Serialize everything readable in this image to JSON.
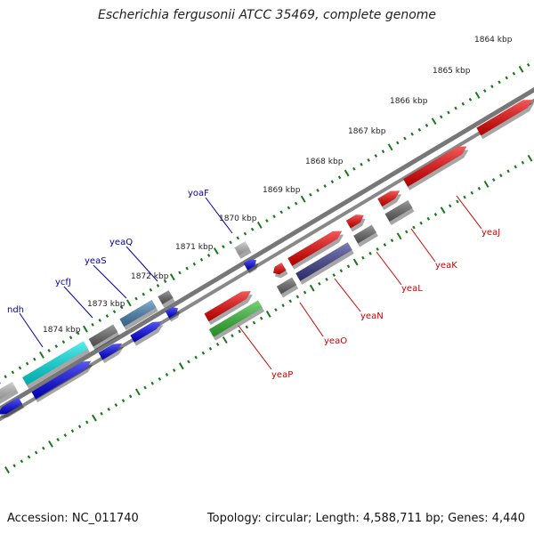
{
  "title": "Escherichia fergusonii ATCC 35469, complete genome",
  "footer": {
    "accession": "Accession: NC_011740",
    "summary": "Topology: circular; Length: 4,588,711 bp; Genes: 4,440"
  },
  "colors": {
    "tick": "#1a7a1a",
    "backbone": "#888888",
    "forward_label": "#0000aa",
    "reverse_label": "#cc0000",
    "red": "#ee0000",
    "blue": "#0000ee",
    "gray": "#666666",
    "lightgray": "#bbbbbb",
    "cyan": "#00e6e6",
    "steelblue": "#4682b4",
    "green": "#33bb33",
    "slate": "#3b3b8f"
  },
  "kbp_labels": [
    "1864 kbp",
    "1865 kbp",
    "1866 kbp",
    "1867 kbp",
    "1868 kbp",
    "1869 kbp",
    "1870 kbp",
    "1871 kbp",
    "1872 kbp",
    "1873 kbp",
    "1874 kbp"
  ],
  "genes_forward": [
    {
      "name": "ndh",
      "color": "cyan"
    },
    {
      "name": "ycfJ",
      "color": "gray"
    },
    {
      "name": "yeaS",
      "color": "steelblue"
    },
    {
      "name": "yeaQ",
      "color": "gray"
    },
    {
      "name": "yoaF",
      "color": "lightgray"
    }
  ],
  "genes_reverse": [
    {
      "name": "yeaP",
      "color": "green"
    },
    {
      "name": "yeaO",
      "color": "gray"
    },
    {
      "name": "yeaN",
      "color": "slate"
    },
    {
      "name": "yeaL",
      "color": "gray"
    },
    {
      "name": "yeaK",
      "color": "gray"
    },
    {
      "name": "yeaJ",
      "color": "red"
    }
  ]
}
